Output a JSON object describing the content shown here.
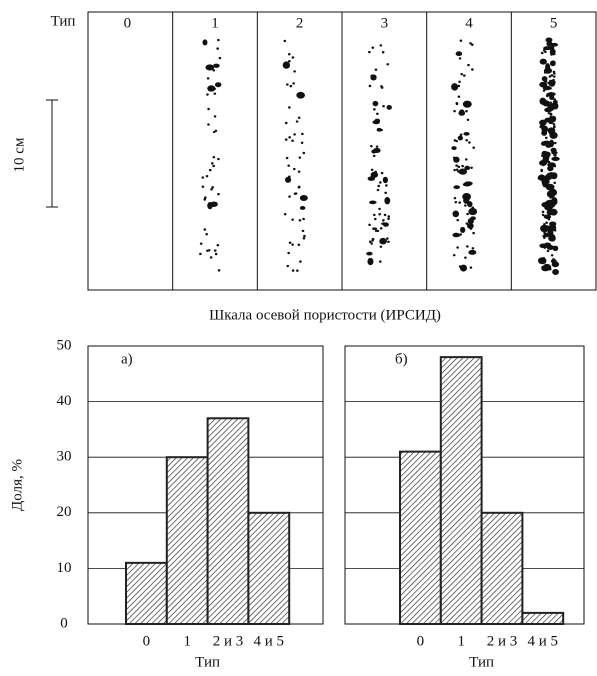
{
  "scale": {
    "type_label": "Тип",
    "types": [
      "0",
      "1",
      "2",
      "3",
      "4",
      "5"
    ],
    "length_label": "10 см",
    "caption": "Шкала осевой пористости (ИРСИД)"
  },
  "chart_data": [
    {
      "type": "bar",
      "title": "а)",
      "categories": [
        "0",
        "1",
        "2 и 3",
        "4 и 5"
      ],
      "values": [
        11,
        30,
        37,
        20
      ],
      "color": "#222",
      "ylim": [
        0,
        50
      ],
      "yticks": [
        0,
        10,
        20,
        30,
        40,
        50
      ],
      "grid": true,
      "ylabel": "Доля, %",
      "xlabel": "Тип"
    },
    {
      "type": "bar",
      "title": "б)",
      "categories": [
        "0",
        "1",
        "2 и 3",
        "4 и 5"
      ],
      "values": [
        31,
        48,
        20,
        2
      ],
      "color": "#222",
      "ylim": [
        0,
        50
      ],
      "yticks": [
        0,
        10,
        20,
        30,
        40,
        50
      ],
      "grid": true,
      "xlabel": "Тип"
    }
  ]
}
